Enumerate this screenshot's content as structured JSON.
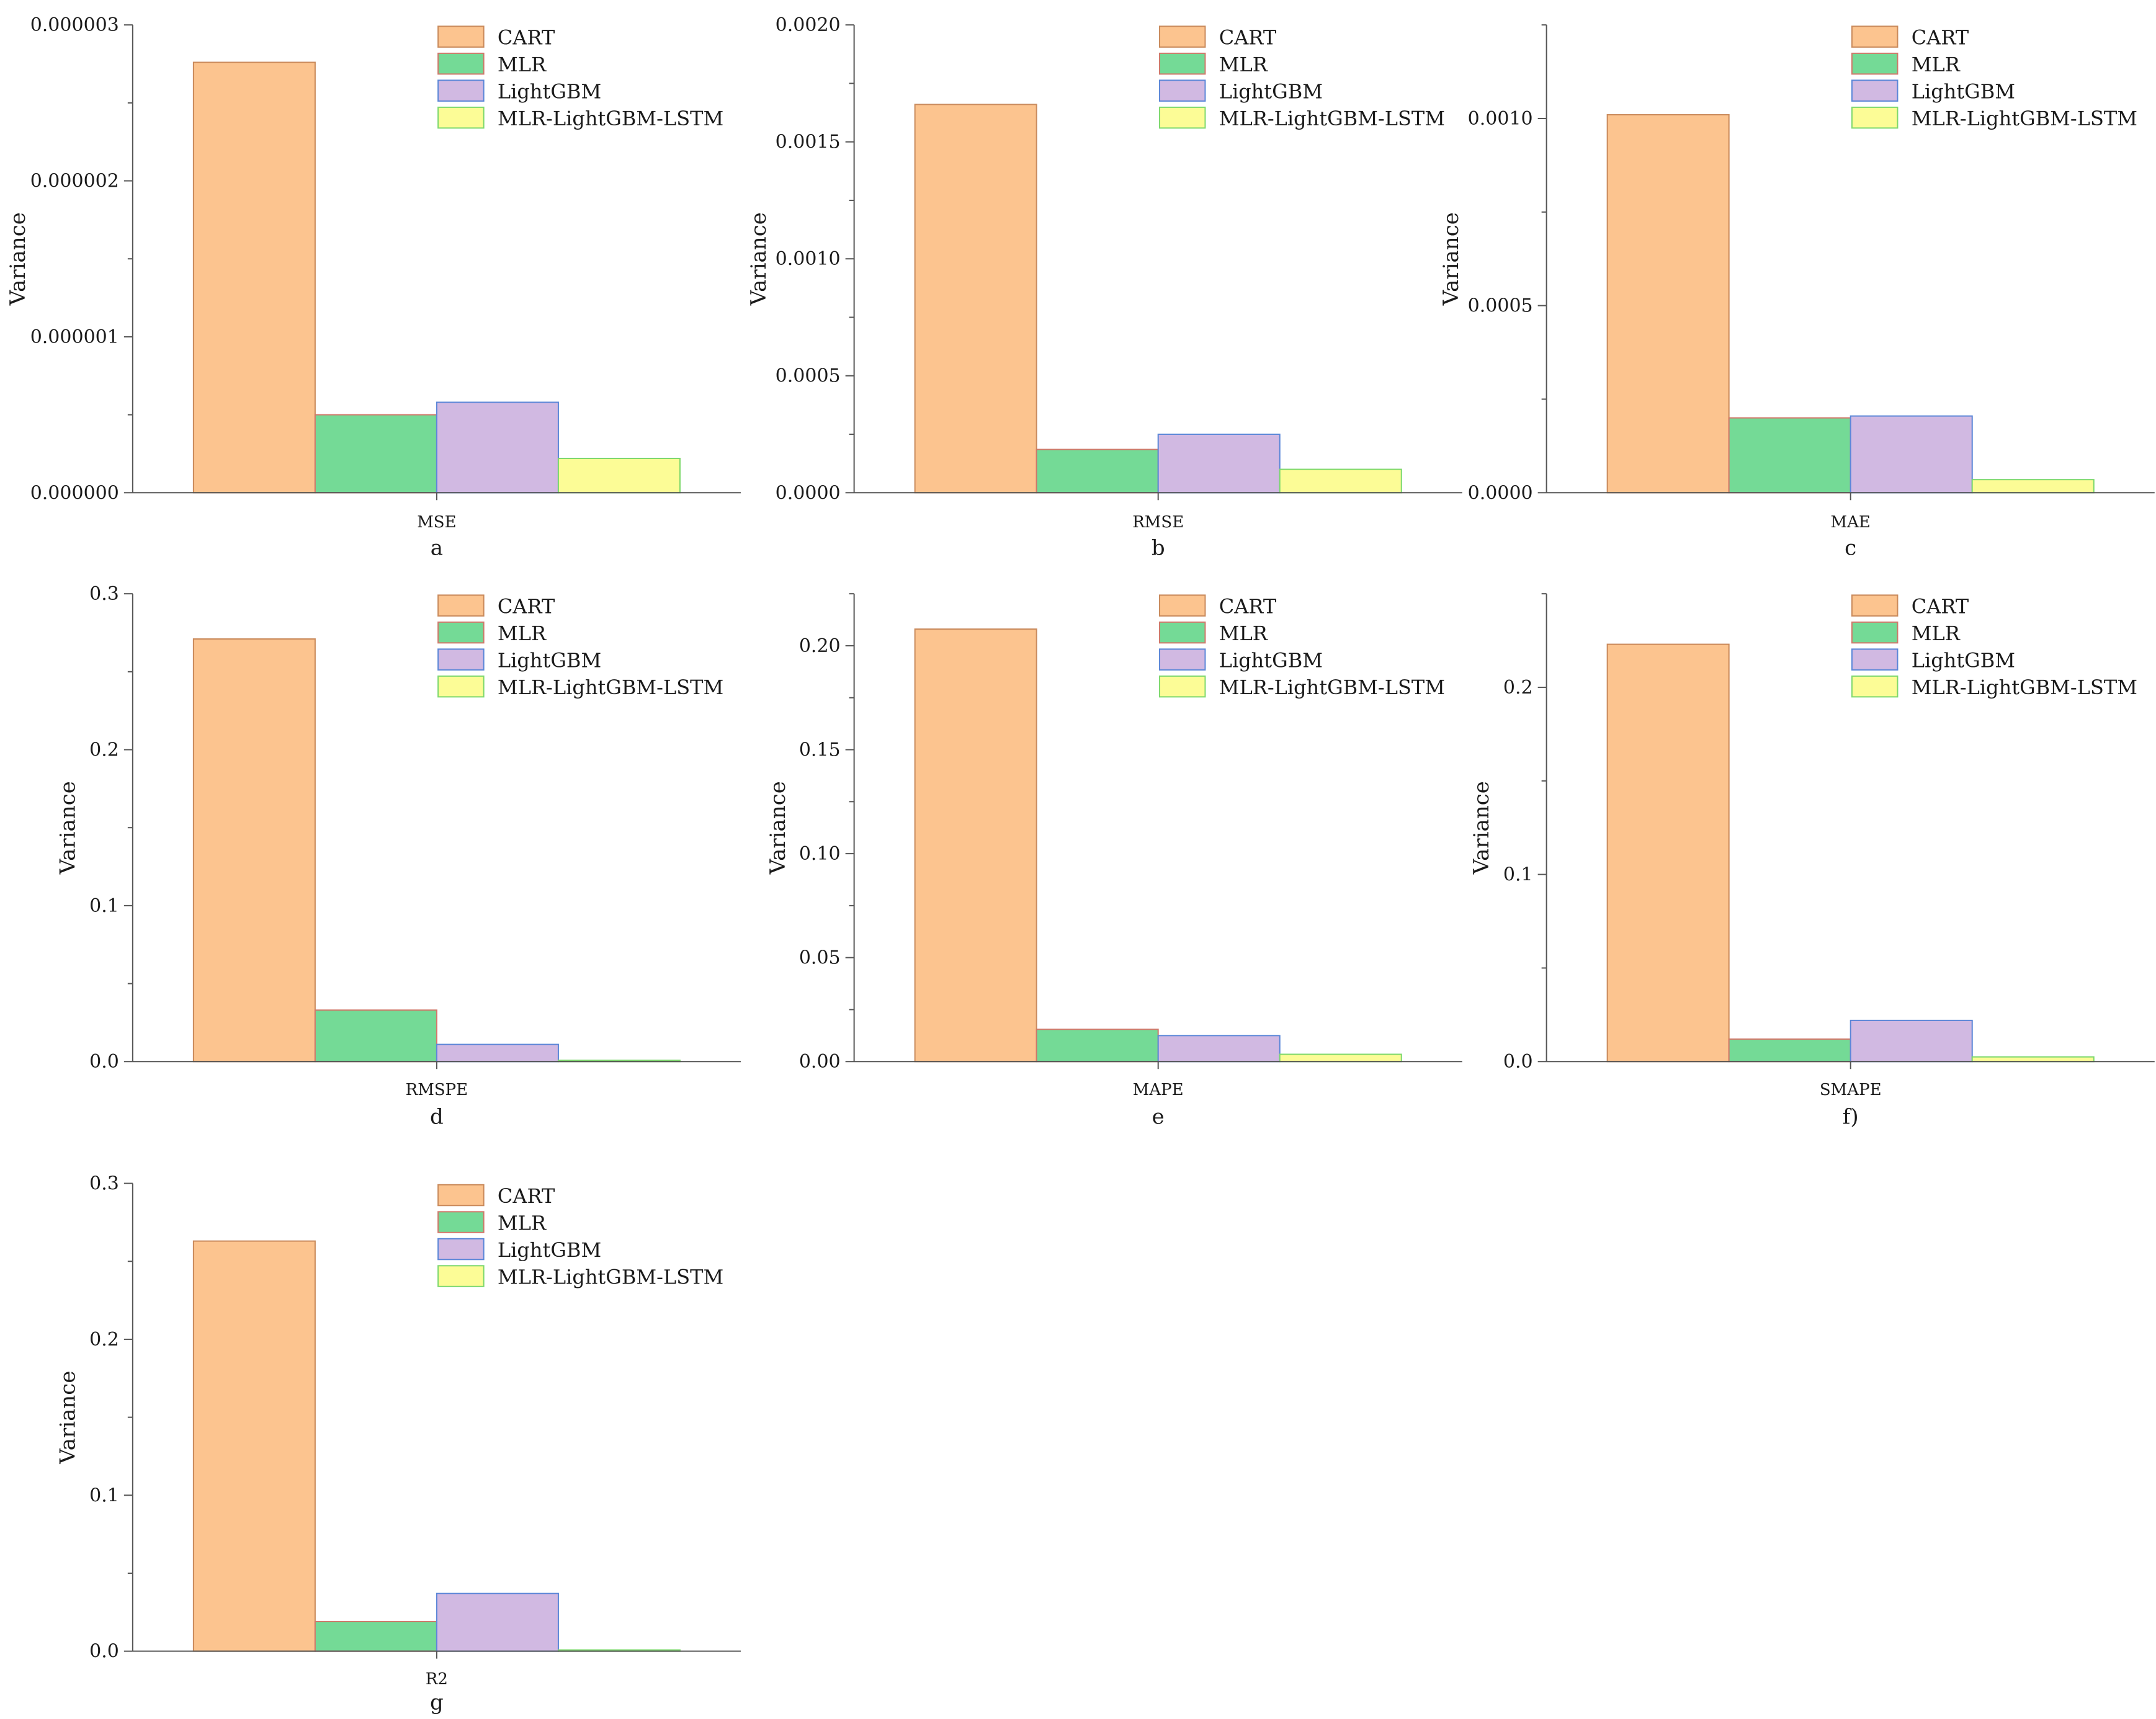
{
  "chart_data": [
    {
      "type": "bar",
      "panel": "a",
      "category": "MSE",
      "ylabel": "Variance",
      "ylim": [
        0,
        3e-06
      ],
      "yticks": [
        "0.000000",
        "0.000001",
        "0.000002",
        "0.000003"
      ],
      "series": [
        {
          "name": "CART",
          "value": 2.76e-06
        },
        {
          "name": "MLR",
          "value": 5e-07
        },
        {
          "name": "LightGBM",
          "value": 5.8e-07
        },
        {
          "name": "MLR-LightGBM-LSTM",
          "value": 2.2e-07
        }
      ]
    },
    {
      "type": "bar",
      "panel": "b",
      "category": "RMSE",
      "ylabel": "Variance",
      "ylim": [
        0,
        0.002
      ],
      "yticks": [
        "0.0000",
        "0.0005",
        "0.0010",
        "0.0015",
        "0.0020"
      ],
      "series": [
        {
          "name": "CART",
          "value": 0.00166
        },
        {
          "name": "MLR",
          "value": 0.000185
        },
        {
          "name": "LightGBM",
          "value": 0.00025
        },
        {
          "name": "MLR-LightGBM-LSTM",
          "value": 0.0001
        }
      ]
    },
    {
      "type": "bar",
      "panel": "c",
      "category": "MAE",
      "ylabel": "Variance",
      "ylim": [
        0,
        0.00125
      ],
      "yticks": [
        "0.0000",
        "0.0005",
        "0.0010"
      ],
      "series": [
        {
          "name": "CART",
          "value": 0.00101
        },
        {
          "name": "MLR",
          "value": 0.0002
        },
        {
          "name": "LightGBM",
          "value": 0.000205
        },
        {
          "name": "MLR-LightGBM-LSTM",
          "value": 3.5e-05
        }
      ]
    },
    {
      "type": "bar",
      "panel": "d",
      "category": "RMSPE",
      "ylabel": "Variance",
      "ylim": [
        0,
        0.3
      ],
      "yticks": [
        "0.0",
        "0.1",
        "0.2",
        "0.3"
      ],
      "series": [
        {
          "name": "CART",
          "value": 0.271
        },
        {
          "name": "MLR",
          "value": 0.033
        },
        {
          "name": "LightGBM",
          "value": 0.011
        },
        {
          "name": "MLR-LightGBM-LSTM",
          "value": 0.0008
        }
      ]
    },
    {
      "type": "bar",
      "panel": "e",
      "category": "MAPE",
      "ylabel": "Variance",
      "ylim": [
        0,
        0.225
      ],
      "yticks": [
        "0.00",
        "0.05",
        "0.10",
        "0.15",
        "0.20"
      ],
      "series": [
        {
          "name": "CART",
          "value": 0.208
        },
        {
          "name": "MLR",
          "value": 0.0155
        },
        {
          "name": "LightGBM",
          "value": 0.0125
        },
        {
          "name": "MLR-LightGBM-LSTM",
          "value": 0.0035
        }
      ]
    },
    {
      "type": "bar",
      "panel": "f)",
      "category": "SMAPE",
      "ylabel": "Variance",
      "ylim": [
        0,
        0.25
      ],
      "yticks": [
        "0.0",
        "0.1",
        "0.2"
      ],
      "series": [
        {
          "name": "CART",
          "value": 0.223
        },
        {
          "name": "MLR",
          "value": 0.012
        },
        {
          "name": "LightGBM",
          "value": 0.022
        },
        {
          "name": "MLR-LightGBM-LSTM",
          "value": 0.0025
        }
      ]
    },
    {
      "type": "bar",
      "panel": "g",
      "category": "R2",
      "ylabel": "Variance",
      "ylim": [
        0,
        0.3
      ],
      "yticks": [
        "0.0",
        "0.1",
        "0.2",
        "0.3"
      ],
      "series": [
        {
          "name": "CART",
          "value": 0.263
        },
        {
          "name": "MLR",
          "value": 0.019
        },
        {
          "name": "LightGBM",
          "value": 0.037
        },
        {
          "name": "MLR-LightGBM-LSTM",
          "value": 0.0008
        }
      ]
    }
  ],
  "colors": {
    "fills": [
      "#fcc48f",
      "#74da96",
      "#d1b9e2",
      "#fcfc96"
    ],
    "strokes": [
      "#c98a5c",
      "#d0786a",
      "#5b87d8",
      "#7dd86d"
    ],
    "axis": "#555555"
  }
}
